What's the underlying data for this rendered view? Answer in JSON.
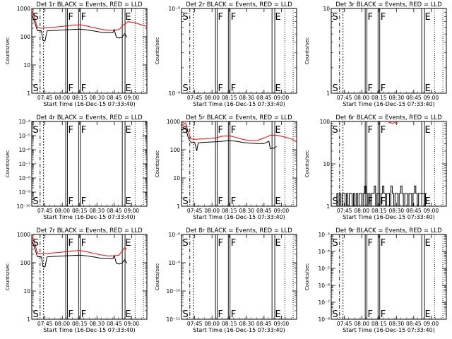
{
  "chart_data": [
    {
      "type": "line",
      "title": "Det 1r BLACK = Events, RED = LLD",
      "xlabel": "Start Time (16-Dec-15 07:33:40)",
      "ylabel": "Counts/sec",
      "log_y": true,
      "ylim": [
        1,
        1000
      ],
      "ytick_values": [
        1,
        10,
        100,
        1000
      ],
      "ytick_labels": [
        "1",
        "10",
        "100",
        "1000"
      ],
      "xlim": [
        7.56,
        9.22
      ],
      "xtick_values": [
        7.75,
        8.0,
        8.25,
        8.5,
        8.75,
        9.0
      ],
      "xtick_labels": [
        "07:45",
        "08:00",
        "08:15",
        "08:30",
        "08:45",
        "09:00"
      ],
      "markers": [
        {
          "label": "S",
          "x": 7.59
        },
        {
          "label": "F",
          "x": 8.06
        },
        {
          "label": "F",
          "x": 8.25
        },
        {
          "label": "E",
          "x": 8.88
        }
      ],
      "series": [
        {
          "color": "#ff0000",
          "x": [
            7.56,
            7.6,
            7.64,
            7.7,
            7.75,
            7.85,
            7.95,
            8.05,
            8.15,
            8.25,
            8.35,
            8.45,
            8.55,
            8.65,
            8.75,
            8.82,
            8.88,
            8.95,
            9.05,
            9.15,
            9.22
          ],
          "y": [
            900,
            480,
            210,
            200,
            205,
            215,
            225,
            240,
            255,
            265,
            240,
            210,
            185,
            170,
            170,
            180,
            260,
            340,
            310,
            260,
            230
          ]
        },
        {
          "color": "#000000",
          "x": [
            7.56,
            7.6,
            7.64,
            7.7,
            7.72,
            7.75,
            7.78,
            7.85,
            7.95,
            8.05,
            8.15,
            8.25,
            8.35,
            8.45,
            8.55,
            8.65,
            8.73,
            8.75,
            8.78,
            8.82,
            8.86,
            8.9,
            8.93
          ],
          "y": [
            600,
            340,
            165,
            160,
            75,
            70,
            160,
            165,
            170,
            175,
            180,
            185,
            175,
            160,
            145,
            140,
            140,
            180,
            95,
            90,
            95,
            130,
            95
          ]
        }
      ]
    },
    {
      "type": "line",
      "title": "Det 2r BLACK = Events, RED = LLD",
      "xlabel": "Start Time (16-Dec-15 07:33:40)",
      "ylabel": "Counts/sec",
      "log_y": true,
      "ylim": [
        1e-09,
        1e-08
      ],
      "ytick_values": [
        1e-09,
        1e-08
      ],
      "ytick_labels": [
        "10⁻⁹",
        "10⁻⁸"
      ],
      "xlim": [
        7.56,
        9.22
      ],
      "xtick_values": [
        7.75,
        8.0,
        8.25,
        8.5,
        8.75,
        9.0
      ],
      "xtick_labels": [
        "07:45",
        "08:00",
        "08:15",
        "08:30",
        "08:45",
        "09:00"
      ],
      "markers": [
        {
          "label": "S",
          "x": 7.59
        },
        {
          "label": "F",
          "x": 8.06
        },
        {
          "label": "F",
          "x": 8.25
        },
        {
          "label": "E",
          "x": 8.88
        }
      ],
      "series": []
    },
    {
      "type": "line",
      "title": "Det 3r BLACK = Events, RED = LLD",
      "xlabel": "Start Time (16-Dec-15 07:33:40)",
      "ylabel": "Counts/sec",
      "log_y": true,
      "ylim": [
        1,
        10
      ],
      "ytick_values": [
        1,
        10
      ],
      "ytick_labels": [
        "1",
        "10"
      ],
      "xlim": [
        7.56,
        9.22
      ],
      "xtick_values": [
        7.75,
        8.0,
        8.25,
        8.5,
        8.75,
        9.0
      ],
      "xtick_labels": [
        "07:45",
        "08:00",
        "08:15",
        "08:30",
        "08:45",
        "09:00"
      ],
      "markers": [
        {
          "label": "S",
          "x": 7.59
        },
        {
          "label": "F",
          "x": 8.06
        },
        {
          "label": "F",
          "x": 8.25
        },
        {
          "label": "E",
          "x": 8.88
        }
      ],
      "series": []
    },
    {
      "type": "line",
      "title": "Det 4r BLACK = Events, RED = LLD",
      "xlabel": "Start Time (16-Dec-15 07:33:40)",
      "ylabel": "Counts/sec",
      "log_y": true,
      "ylim": [
        1e-10,
        0.0001
      ],
      "ytick_values": [
        1e-10,
        1e-09,
        1e-08,
        1e-07,
        1e-06,
        1e-05,
        0.0001
      ],
      "ytick_labels": [
        "10⁻¹⁰",
        "10⁻⁹",
        "10⁻⁸",
        "10⁻⁷",
        "10⁻⁶",
        "10⁻⁵",
        "10⁻⁴"
      ],
      "xlim": [
        7.56,
        9.22
      ],
      "xtick_values": [
        7.75,
        8.0,
        8.25,
        8.5,
        8.75,
        9.0
      ],
      "xtick_labels": [
        "07:45",
        "08:00",
        "08:15",
        "08:30",
        "08:45",
        "09:00"
      ],
      "markers": [
        {
          "label": "S",
          "x": 7.59
        },
        {
          "label": "F",
          "x": 8.06
        },
        {
          "label": "F",
          "x": 8.25
        },
        {
          "label": "E",
          "x": 8.88
        }
      ],
      "series": []
    },
    {
      "type": "line",
      "title": "Det 5r BLACK = Events, RED = LLD",
      "xlabel": "Start Time (16-Dec-15 07:33:40)",
      "ylabel": "Counts/sec",
      "log_y": true,
      "ylim": [
        1,
        1000
      ],
      "ytick_values": [
        1,
        10,
        100,
        1000
      ],
      "ytick_labels": [
        "1",
        "10",
        "100",
        "1000"
      ],
      "xlim": [
        7.56,
        9.22
      ],
      "xtick_values": [
        7.75,
        8.0,
        8.25,
        8.5,
        8.75,
        9.0
      ],
      "xtick_labels": [
        "07:45",
        "08:00",
        "08:15",
        "08:30",
        "08:45",
        "09:00"
      ],
      "markers": [
        {
          "label": "S",
          "x": 7.59
        },
        {
          "label": "F",
          "x": 8.06
        },
        {
          "label": "F",
          "x": 8.25
        },
        {
          "label": "E",
          "x": 8.88
        }
      ],
      "series": [
        {
          "color": "#ff0000",
          "x": [
            7.56,
            7.62,
            7.66,
            7.7,
            7.75,
            7.85,
            7.95,
            8.05,
            8.15,
            8.25,
            8.35,
            8.45,
            8.55,
            8.65,
            8.75,
            8.85,
            8.95,
            9.05,
            9.15,
            9.22
          ],
          "y": [
            700,
            900,
            400,
            240,
            235,
            240,
            245,
            260,
            300,
            310,
            270,
            230,
            210,
            210,
            260,
            330,
            320,
            280,
            240,
            190
          ]
        },
        {
          "color": "#000000",
          "x": [
            7.56,
            7.62,
            7.66,
            7.7,
            7.75,
            7.78,
            7.8,
            7.85,
            7.95,
            8.05,
            8.15,
            8.25,
            8.35,
            8.45,
            8.55,
            8.65,
            8.75,
            8.82,
            8.84,
            8.9,
            8.93
          ],
          "y": [
            500,
            600,
            250,
            180,
            180,
            90,
            175,
            180,
            185,
            190,
            200,
            210,
            200,
            180,
            170,
            165,
            165,
            200,
            110,
            115,
            130
          ]
        }
      ]
    },
    {
      "type": "line",
      "title": "Det 6r BLACK = Events, RED = LLD",
      "xlabel": "Start Time (16-Dec-15 07:33:40)",
      "ylabel": "Counts/sec",
      "log_y": true,
      "ylim": [
        1,
        100
      ],
      "ytick_values": [
        1,
        10,
        100
      ],
      "ytick_labels": [
        "1",
        "10",
        "100"
      ],
      "xlim": [
        7.56,
        9.22
      ],
      "xtick_values": [
        7.75,
        8.0,
        8.25,
        8.5,
        8.75,
        9.0
      ],
      "xtick_labels": [
        "07:45",
        "08:00",
        "08:15",
        "08:30",
        "08:45",
        "09:00"
      ],
      "markers": [
        {
          "label": "S",
          "x": 7.59
        },
        {
          "label": "F",
          "x": 8.06
        },
        {
          "label": "F",
          "x": 8.25
        },
        {
          "label": "E",
          "x": 8.88
        }
      ],
      "series": [
        {
          "color": "#ff0000",
          "x": [
            8.38,
            8.41,
            8.44,
            8.47,
            8.5,
            8.52
          ],
          "y": [
            92,
            95,
            90,
            94,
            91,
            93
          ]
        },
        {
          "color": "#000000",
          "step": true,
          "x": [
            7.62,
            7.64,
            7.66,
            7.68,
            7.7,
            7.72,
            7.74,
            7.76,
            7.78,
            7.8,
            7.82,
            7.84,
            7.86,
            7.88,
            7.9,
            7.92,
            7.94,
            7.96,
            7.98,
            8.0,
            8.02,
            8.04,
            8.06,
            8.08,
            8.1,
            8.12,
            8.14,
            8.16,
            8.18,
            8.2,
            8.22,
            8.24,
            8.26,
            8.28,
            8.3,
            8.32,
            8.34,
            8.36,
            8.38,
            8.4,
            8.42,
            8.44,
            8.46,
            8.48,
            8.5,
            8.52,
            8.54,
            8.56,
            8.58,
            8.6,
            8.62,
            8.64,
            8.66,
            8.68,
            8.7,
            8.72,
            8.74,
            8.76,
            8.78,
            8.8,
            8.82,
            8.84,
            8.86,
            8.88,
            8.9,
            8.92,
            8.94
          ],
          "y": [
            1,
            2,
            1,
            2,
            1,
            2,
            2,
            1,
            2,
            1,
            2,
            2,
            1,
            2,
            1,
            2,
            1,
            2,
            2,
            1,
            2,
            3,
            2,
            1,
            2,
            1,
            2,
            2,
            3,
            1,
            2,
            2,
            1,
            2,
            3,
            2,
            1,
            2,
            2,
            1,
            3,
            2,
            1,
            2,
            2,
            1,
            2,
            3,
            2,
            1,
            2,
            2,
            1,
            2,
            2,
            1,
            2,
            3,
            2,
            1,
            2,
            2,
            2,
            2,
            1,
            2,
            2
          ]
        }
      ]
    },
    {
      "type": "line",
      "title": "Det 7r BLACK = Events, RED = LLD",
      "xlabel": "Start Time (16-Dec-15 07:33:40)",
      "ylabel": "Counts/sec",
      "log_y": true,
      "ylim": [
        1,
        1000
      ],
      "ytick_values": [
        1,
        10,
        100,
        1000
      ],
      "ytick_labels": [
        "1",
        "10",
        "100",
        "1000"
      ],
      "xlim": [
        7.56,
        9.22
      ],
      "xtick_values": [
        7.75,
        8.0,
        8.25,
        8.5,
        8.75,
        9.0
      ],
      "xtick_labels": [
        "07:45",
        "08:00",
        "08:15",
        "08:30",
        "08:45",
        "09:00"
      ],
      "markers": [
        {
          "label": "S",
          "x": 7.59
        },
        {
          "label": "F",
          "x": 8.06
        },
        {
          "label": "F",
          "x": 8.25
        },
        {
          "label": "E",
          "x": 8.88
        }
      ],
      "series": [
        {
          "color": "#ff0000",
          "x": [
            7.56,
            7.6,
            7.64,
            7.7,
            7.75,
            7.85,
            7.95,
            8.05,
            8.15,
            8.25,
            8.35,
            8.45,
            8.55,
            8.65,
            8.75,
            8.82,
            8.86,
            8.9,
            8.93
          ],
          "y": [
            900,
            500,
            220,
            205,
            210,
            220,
            230,
            245,
            260,
            270,
            245,
            215,
            190,
            175,
            175,
            185,
            260,
            340,
            300
          ]
        },
        {
          "color": "#000000",
          "x": [
            7.56,
            7.6,
            7.64,
            7.7,
            7.72,
            7.75,
            7.78,
            7.85,
            7.95,
            8.05,
            8.15,
            8.25,
            8.35,
            8.45,
            8.55,
            8.65,
            8.73,
            8.75,
            8.78,
            8.82,
            8.86,
            8.9,
            8.93
          ],
          "y": [
            600,
            340,
            165,
            160,
            75,
            70,
            160,
            165,
            170,
            175,
            180,
            185,
            175,
            160,
            145,
            140,
            140,
            180,
            95,
            90,
            95,
            130,
            95
          ]
        }
      ]
    },
    {
      "type": "line",
      "title": "Det 8r BLACK = Events, RED = LLD",
      "xlabel": "Start Time (16-Dec-15 07:33:40)",
      "ylabel": "Counts/sec",
      "log_y": true,
      "ylim": [
        1e-11,
        1e-08
      ],
      "ytick_values": [
        1e-11,
        1e-10,
        1e-09,
        1e-08
      ],
      "ytick_labels": [
        "10⁻¹¹",
        "10⁻¹⁰",
        "10⁻⁹",
        "10⁻⁸"
      ],
      "xlim": [
        7.56,
        9.22
      ],
      "xtick_values": [
        7.75,
        8.0,
        8.25,
        8.5,
        8.75,
        9.0
      ],
      "xtick_labels": [
        "07:45",
        "08:00",
        "08:15",
        "08:30",
        "08:45",
        "09:00"
      ],
      "markers": [
        {
          "label": "S",
          "x": 7.59
        },
        {
          "label": "F",
          "x": 8.06
        },
        {
          "label": "F",
          "x": 8.25
        },
        {
          "label": "E",
          "x": 8.88
        }
      ],
      "series": []
    },
    {
      "type": "line",
      "title": "Det 9r BLACK = Events, RED = LLD",
      "xlabel": "Start Time (16-Dec-15 07:33:40)",
      "ylabel": "Counts/sec",
      "log_y": true,
      "ylim": [
        1e-08,
        0.001
      ],
      "ytick_values": [
        1e-08,
        1e-07,
        1e-06,
        1e-05,
        0.0001,
        0.001
      ],
      "ytick_labels": [
        "10⁻⁸",
        "10⁻⁷",
        "10⁻⁶",
        "10⁻⁵",
        "10⁻⁴",
        "10⁻³"
      ],
      "xlim": [
        7.56,
        9.22
      ],
      "xtick_values": [
        7.75,
        8.0,
        8.25,
        8.5,
        8.75,
        9.0
      ],
      "xtick_labels": [
        "07:45",
        "08:00",
        "08:15",
        "08:30",
        "08:45",
        "09:00"
      ],
      "markers": [
        {
          "label": "S",
          "x": 7.59
        },
        {
          "label": "F",
          "x": 8.06
        },
        {
          "label": "F",
          "x": 8.25
        },
        {
          "label": "E",
          "x": 8.88
        }
      ],
      "series": []
    }
  ]
}
